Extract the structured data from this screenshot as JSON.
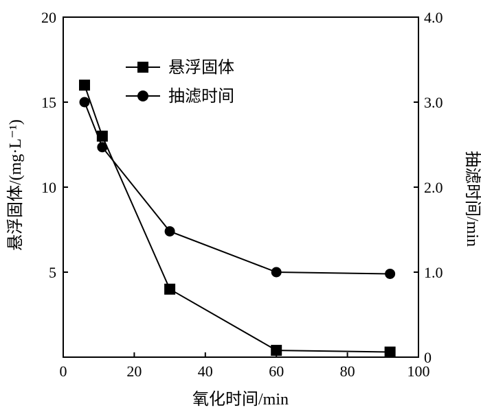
{
  "chart_data": {
    "type": "line",
    "xlabel": "氧化时间/min",
    "ylabel_left": "悬浮固体/(mg·L⁻¹)",
    "ylabel_right": "抽滤时间/min",
    "xlim": [
      0,
      100
    ],
    "ylim_left": [
      0,
      20
    ],
    "ylim_right": [
      0,
      4.0
    ],
    "x_ticks": [
      "0",
      "20",
      "40",
      "60",
      "80",
      "100"
    ],
    "y_left_ticks": [
      "5",
      "10",
      "15",
      "20"
    ],
    "y_right_ticks": [
      "0",
      "1.0",
      "2.0",
      "3.0",
      "4.0"
    ],
    "legend_position": "top-left",
    "grid": false,
    "series": [
      {
        "name": "悬浮固体",
        "axis": "left",
        "marker": "square",
        "color": "#000000",
        "x": [
          6,
          11,
          30,
          60,
          92
        ],
        "y": [
          16.0,
          13.0,
          4.0,
          0.4,
          0.3
        ]
      },
      {
        "name": "抽滤时间",
        "axis": "right",
        "marker": "circle",
        "color": "#000000",
        "x": [
          6,
          11,
          30,
          60,
          92
        ],
        "y": [
          3.0,
          2.47,
          1.48,
          1.0,
          0.98
        ]
      }
    ]
  }
}
